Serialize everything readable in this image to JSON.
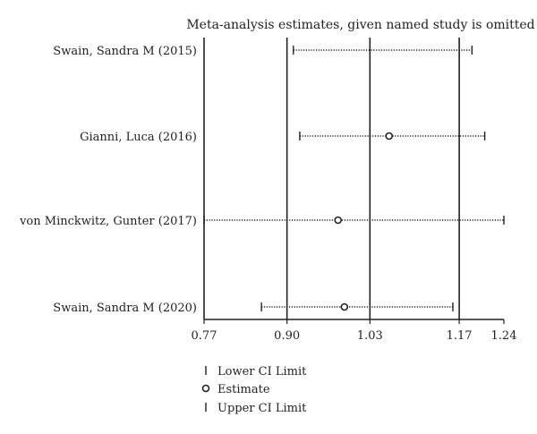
{
  "chart_data": {
    "type": "forest",
    "title": "Meta-analysis estimates, given named study is omitted",
    "xlim": [
      0.77,
      1.24
    ],
    "xticks": [
      "0.77",
      "0.90",
      "1.03",
      "1.17",
      "1.24"
    ],
    "reference_lines": [
      0.9,
      1.03,
      1.17
    ],
    "studies": [
      {
        "name": "Swain, Sandra M (2015)",
        "lower": 0.91,
        "estimate": null,
        "upper": 1.19
      },
      {
        "name": "Gianni, Luca (2016)",
        "lower": 0.92,
        "estimate": 1.06,
        "upper": 1.21
      },
      {
        "name": "von Minckwitz, Gunter (2017)",
        "lower": 0.77,
        "estimate": 0.98,
        "upper": 1.24
      },
      {
        "name": "Swain, Sandra M (2020)",
        "lower": 0.86,
        "estimate": 0.99,
        "upper": 1.16
      }
    ],
    "legend": {
      "lower": "Lower CI Limit",
      "estimate": "Estimate",
      "upper": "Upper CI Limit"
    }
  }
}
